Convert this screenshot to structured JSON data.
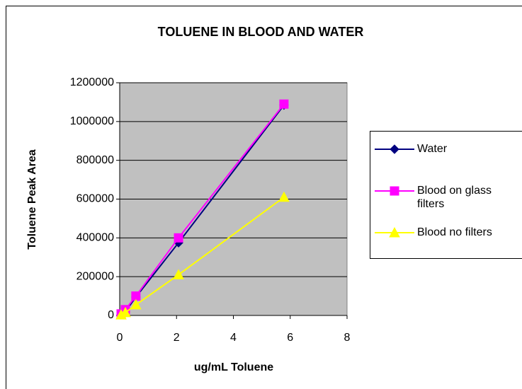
{
  "chart_data": {
    "type": "line",
    "title": "TOLUENE IN BLOOD AND WATER",
    "x_label": "ug/mL Toluene",
    "y_label": "Toluene Peak Area",
    "x": [
      0.05,
      0.2,
      0.57,
      2.07,
      5.78
    ],
    "series": [
      {
        "name": "Water",
        "color": "#000080",
        "marker": "diamond",
        "values": [
          5000,
          20000,
          95000,
          375000,
          1085000
        ]
      },
      {
        "name": "Blood on glass filters",
        "color": "#ff00ff",
        "marker": "square",
        "values": [
          8000,
          30000,
          100000,
          400000,
          1090000
        ]
      },
      {
        "name": "Blood no filters",
        "color": "#ffff00",
        "marker": "triangle",
        "values": [
          3000,
          15000,
          55000,
          210000,
          610000
        ]
      }
    ],
    "xlim": [
      0,
      8
    ],
    "xticks": [
      0,
      2,
      4,
      6,
      8
    ],
    "ylim": [
      0,
      1200000
    ],
    "yticks": [
      0,
      200000,
      400000,
      600000,
      800000,
      1000000,
      1200000
    ],
    "grid": true,
    "plot_background": "#c0c0c0",
    "legend": "right"
  }
}
